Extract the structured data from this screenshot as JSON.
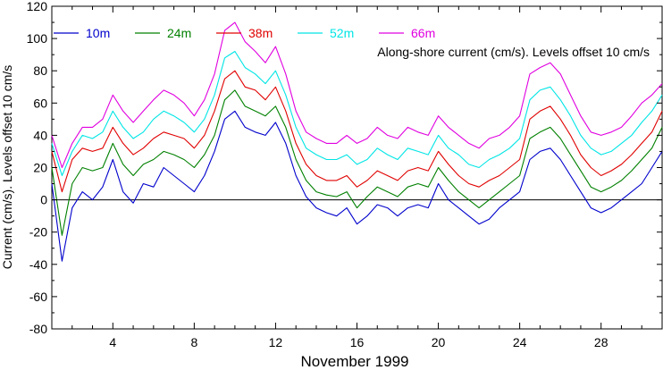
{
  "chart_data": {
    "type": "line",
    "annotation": "Along-shore current (cm/s). Levels offset 10 cm/s",
    "xlabel": "November 1999",
    "ylabel": "Current (cm/s). Levels offset 10 cm/s",
    "xlim": [
      1,
      31
    ],
    "ylim": [
      -80,
      120
    ],
    "yticks": [
      -80,
      -60,
      -40,
      -20,
      0,
      20,
      40,
      60,
      80,
      100,
      120
    ],
    "xticks": [
      4,
      8,
      12,
      16,
      20,
      24,
      28
    ],
    "zero_line": true,
    "grid": false,
    "legend_position": "top-left",
    "series": [
      {
        "name": "10m",
        "color": "#0000cc",
        "x": [
          1.0,
          1.5,
          2.0,
          2.5,
          3.0,
          3.5,
          4.0,
          4.5,
          5.0,
          5.5,
          6.0,
          6.5,
          7.0,
          7.5,
          8.0,
          8.5,
          9.0,
          9.5,
          10.0,
          10.5,
          11.0,
          11.5,
          12.0,
          12.5,
          13.0,
          13.5,
          14.0,
          14.5,
          15.0,
          15.5,
          16.0,
          16.5,
          17.0,
          17.5,
          18.0,
          18.5,
          19.0,
          19.5,
          20.0,
          20.5,
          21.0,
          21.5,
          22.0,
          22.5,
          23.0,
          23.5,
          24.0,
          24.5,
          25.0,
          25.5,
          26.0,
          26.5,
          27.0,
          27.5,
          28.0,
          28.5,
          29.0,
          29.5,
          30.0,
          30.5,
          31.0
        ],
        "values": [
          10,
          -38,
          -5,
          5,
          0,
          8,
          25,
          5,
          -2,
          10,
          8,
          20,
          15,
          10,
          5,
          15,
          30,
          50,
          55,
          45,
          42,
          40,
          48,
          35,
          15,
          2,
          -5,
          -8,
          -10,
          -5,
          -15,
          -10,
          -3,
          -5,
          -10,
          -5,
          -3,
          -5,
          10,
          0,
          -5,
          -10,
          -15,
          -12,
          -5,
          0,
          5,
          25,
          30,
          32,
          25,
          15,
          5,
          -5,
          -8,
          -5,
          0,
          5,
          10,
          20,
          30
        ]
      },
      {
        "name": "24m",
        "color": "#008000",
        "x": [
          1.0,
          1.5,
          2.0,
          2.5,
          3.0,
          3.5,
          4.0,
          4.5,
          5.0,
          5.5,
          6.0,
          6.5,
          7.0,
          7.5,
          8.0,
          8.5,
          9.0,
          9.5,
          10.0,
          10.5,
          11.0,
          11.5,
          12.0,
          12.5,
          13.0,
          13.5,
          14.0,
          14.5,
          15.0,
          15.5,
          16.0,
          16.5,
          17.0,
          17.5,
          18.0,
          18.5,
          19.0,
          19.5,
          20.0,
          20.5,
          21.0,
          21.5,
          22.0,
          22.5,
          23.0,
          23.5,
          24.0,
          24.5,
          25.0,
          25.5,
          26.0,
          26.5,
          27.0,
          27.5,
          28.0,
          28.5,
          29.0,
          29.5,
          30.0,
          30.5,
          31.0
        ],
        "values": [
          20,
          -22,
          10,
          20,
          18,
          20,
          35,
          22,
          15,
          22,
          25,
          30,
          28,
          25,
          20,
          28,
          40,
          62,
          68,
          58,
          55,
          52,
          58,
          45,
          25,
          12,
          5,
          3,
          2,
          5,
          -5,
          2,
          8,
          5,
          2,
          8,
          10,
          8,
          20,
          12,
          5,
          0,
          -5,
          0,
          5,
          10,
          15,
          38,
          42,
          45,
          38,
          28,
          18,
          8,
          5,
          8,
          12,
          18,
          25,
          32,
          45
        ]
      },
      {
        "name": "38m",
        "color": "#e00000",
        "x": [
          1.0,
          1.5,
          2.0,
          2.5,
          3.0,
          3.5,
          4.0,
          4.5,
          5.0,
          5.5,
          6.0,
          6.5,
          7.0,
          7.5,
          8.0,
          8.5,
          9.0,
          9.5,
          10.0,
          10.5,
          11.0,
          11.5,
          12.0,
          12.5,
          13.0,
          13.5,
          14.0,
          14.5,
          15.0,
          15.5,
          16.0,
          16.5,
          17.0,
          17.5,
          18.0,
          18.5,
          19.0,
          19.5,
          20.0,
          20.5,
          21.0,
          21.5,
          22.0,
          22.5,
          23.0,
          23.5,
          24.0,
          24.5,
          25.0,
          25.5,
          26.0,
          26.5,
          27.0,
          27.5,
          28.0,
          28.5,
          29.0,
          29.5,
          30.0,
          30.5,
          31.0
        ],
        "values": [
          30,
          5,
          25,
          32,
          30,
          32,
          45,
          35,
          28,
          32,
          38,
          42,
          40,
          38,
          32,
          40,
          55,
          75,
          80,
          70,
          68,
          62,
          70,
          55,
          35,
          22,
          15,
          12,
          12,
          15,
          8,
          12,
          18,
          15,
          12,
          18,
          20,
          18,
          30,
          22,
          15,
          10,
          8,
          12,
          15,
          20,
          25,
          50,
          55,
          58,
          50,
          40,
          28,
          20,
          15,
          18,
          22,
          28,
          35,
          42,
          55
        ]
      },
      {
        "name": "52m",
        "color": "#00e5e5",
        "x": [
          1.0,
          1.5,
          2.0,
          2.5,
          3.0,
          3.5,
          4.0,
          4.5,
          5.0,
          5.5,
          6.0,
          6.5,
          7.0,
          7.5,
          8.0,
          8.5,
          9.0,
          9.5,
          10.0,
          10.5,
          11.0,
          11.5,
          12.0,
          12.5,
          13.0,
          13.5,
          14.0,
          14.5,
          15.0,
          15.5,
          16.0,
          16.5,
          17.0,
          17.5,
          18.0,
          18.5,
          19.0,
          19.5,
          20.0,
          20.5,
          21.0,
          21.5,
          22.0,
          22.5,
          23.0,
          23.5,
          24.0,
          24.5,
          25.0,
          25.5,
          26.0,
          26.5,
          27.0,
          27.5,
          28.0,
          28.5,
          29.0,
          29.5,
          30.0,
          30.5,
          31.0
        ],
        "values": [
          35,
          15,
          30,
          40,
          38,
          42,
          55,
          45,
          38,
          42,
          50,
          55,
          52,
          48,
          42,
          50,
          65,
          88,
          92,
          82,
          78,
          72,
          80,
          65,
          45,
          32,
          28,
          25,
          25,
          28,
          22,
          25,
          32,
          28,
          25,
          32,
          30,
          28,
          40,
          32,
          28,
          22,
          20,
          25,
          28,
          32,
          38,
          62,
          68,
          70,
          62,
          52,
          40,
          32,
          28,
          30,
          35,
          40,
          48,
          55,
          65
        ]
      },
      {
        "name": "66m",
        "color": "#e000e0",
        "x": [
          1.0,
          1.5,
          2.0,
          2.5,
          3.0,
          3.5,
          4.0,
          4.5,
          5.0,
          5.5,
          6.0,
          6.5,
          7.0,
          7.5,
          8.0,
          8.5,
          9.0,
          9.5,
          10.0,
          10.5,
          11.0,
          11.5,
          12.0,
          12.5,
          13.0,
          13.5,
          14.0,
          14.5,
          15.0,
          15.5,
          16.0,
          16.5,
          17.0,
          17.5,
          18.0,
          18.5,
          19.0,
          19.5,
          20.0,
          20.5,
          21.0,
          21.5,
          22.0,
          22.5,
          23.0,
          23.5,
          24.0,
          24.5,
          25.0,
          25.5,
          26.0,
          26.5,
          27.0,
          27.5,
          28.0,
          28.5,
          29.0,
          29.5,
          30.0,
          30.5,
          31.0
        ],
        "values": [
          40,
          20,
          35,
          45,
          45,
          50,
          65,
          55,
          48,
          55,
          62,
          68,
          65,
          60,
          52,
          62,
          78,
          105,
          110,
          98,
          92,
          85,
          95,
          78,
          55,
          42,
          38,
          35,
          35,
          40,
          35,
          38,
          45,
          40,
          38,
          45,
          42,
          40,
          52,
          45,
          40,
          35,
          32,
          38,
          40,
          45,
          52,
          78,
          82,
          85,
          78,
          65,
          52,
          42,
          40,
          42,
          45,
          52,
          60,
          65,
          72
        ]
      }
    ]
  }
}
